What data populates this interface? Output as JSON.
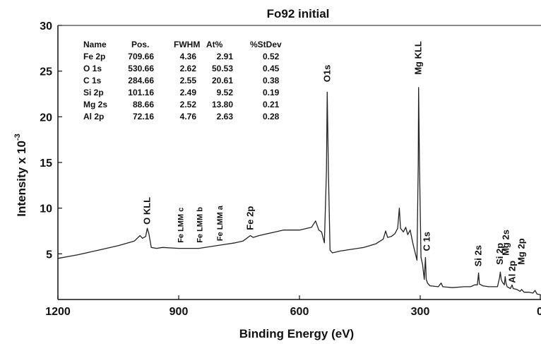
{
  "chart_data": {
    "type": "line",
    "title": "Fo92 initial",
    "xlabel": "Binding Energy (eV)",
    "ylabel": "Intensity x 10",
    "ylabel_exponent": "-3",
    "x_reversed": true,
    "xlim": [
      1200,
      0
    ],
    "ylim": [
      0,
      30
    ],
    "x_ticks": [
      {
        "value": 1200,
        "label": "1200"
      },
      {
        "value": 900,
        "label": "900"
      },
      {
        "value": 600,
        "label": "600"
      },
      {
        "value": 300,
        "label": "300"
      },
      {
        "value": 0,
        "label": "0"
      }
    ],
    "y_ticks": [
      {
        "value": 5,
        "label": "5"
      },
      {
        "value": 10,
        "label": "10"
      },
      {
        "value": 15,
        "label": "15"
      },
      {
        "value": 20,
        "label": "20"
      },
      {
        "value": 25,
        "label": "25"
      },
      {
        "value": 30,
        "label": "30"
      }
    ],
    "series": [
      {
        "color": "#222222",
        "points": [
          [
            1200,
            4.5
          ],
          [
            1150,
            4.9
          ],
          [
            1100,
            5.4
          ],
          [
            1050,
            5.9
          ],
          [
            1010,
            6.4
          ],
          [
            996,
            7.0
          ],
          [
            990,
            6.7
          ],
          [
            982,
            6.9
          ],
          [
            978,
            7.8
          ],
          [
            974,
            7.2
          ],
          [
            968,
            5.7
          ],
          [
            955,
            5.6
          ],
          [
            940,
            5.7
          ],
          [
            900,
            5.6
          ],
          [
            870,
            5.6
          ],
          [
            850,
            5.6
          ],
          [
            820,
            5.8
          ],
          [
            790,
            6.0
          ],
          [
            760,
            6.2
          ],
          [
            740,
            6.4
          ],
          [
            722,
            7.0
          ],
          [
            715,
            6.8
          ],
          [
            700,
            7.0
          ],
          [
            670,
            7.3
          ],
          [
            640,
            7.6
          ],
          [
            600,
            7.6
          ],
          [
            570,
            7.9
          ],
          [
            560,
            8.6
          ],
          [
            552,
            7.6
          ],
          [
            545,
            7.4
          ],
          [
            538,
            6.2
          ],
          [
            533,
            14.0
          ],
          [
            531,
            22.7
          ],
          [
            528,
            14.0
          ],
          [
            524,
            5.4
          ],
          [
            518,
            5.1
          ],
          [
            500,
            5.3
          ],
          [
            470,
            5.5
          ],
          [
            440,
            5.7
          ],
          [
            410,
            6.1
          ],
          [
            392,
            6.6
          ],
          [
            386,
            7.5
          ],
          [
            381,
            6.8
          ],
          [
            372,
            6.9
          ],
          [
            363,
            7.2
          ],
          [
            356,
            7.8
          ],
          [
            352,
            10.0
          ],
          [
            349,
            7.8
          ],
          [
            342,
            7.4
          ],
          [
            336,
            7.9
          ],
          [
            331,
            7.1
          ],
          [
            325,
            7.6
          ],
          [
            318,
            6.1
          ],
          [
            312,
            5.0
          ],
          [
            308,
            4.3
          ],
          [
            305,
            15.0
          ],
          [
            304,
            23.2
          ],
          [
            302,
            15.0
          ],
          [
            298,
            4.6
          ],
          [
            294,
            3.8
          ],
          [
            290,
            2.2
          ],
          [
            287,
            4.6
          ],
          [
            285,
            2.2
          ],
          [
            282,
            1.8
          ],
          [
            276,
            1.5
          ],
          [
            255,
            1.4
          ],
          [
            248,
            1.8
          ],
          [
            244,
            1.4
          ],
          [
            220,
            1.3
          ],
          [
            190,
            1.4
          ],
          [
            175,
            1.4
          ],
          [
            165,
            1.6
          ],
          [
            158,
            1.6
          ],
          [
            155,
            2.9
          ],
          [
            153,
            1.7
          ],
          [
            145,
            1.5
          ],
          [
            130,
            1.4
          ],
          [
            118,
            1.4
          ],
          [
            108,
            1.4
          ],
          [
            103,
            2.4
          ],
          [
            101,
            3.0
          ],
          [
            99,
            2.2
          ],
          [
            96,
            1.9
          ],
          [
            91,
            1.6
          ],
          [
            89,
            2.5
          ],
          [
            87,
            1.8
          ],
          [
            84,
            1.4
          ],
          [
            76,
            1.2
          ],
          [
            72,
            1.6
          ],
          [
            69,
            1.2
          ],
          [
            60,
            1.1
          ],
          [
            52,
            0.9
          ],
          [
            48,
            1.1
          ],
          [
            42,
            0.8
          ],
          [
            30,
            0.8
          ],
          [
            20,
            0.7
          ],
          [
            15,
            1.0
          ],
          [
            10,
            0.6
          ],
          [
            0,
            0.5
          ]
        ]
      }
    ],
    "peak_labels": [
      {
        "text": "O KLL",
        "x": 978,
        "y": 8.2,
        "size": "normal"
      },
      {
        "text": "Fe LMM c",
        "x": 896,
        "y": 6.2,
        "size": "small"
      },
      {
        "text": "Fe LMM b",
        "x": 848,
        "y": 6.2,
        "size": "small"
      },
      {
        "text": "Fe LMM a",
        "x": 798,
        "y": 6.4,
        "size": "small"
      },
      {
        "text": "Fe 2p",
        "x": 722,
        "y": 7.6,
        "size": "normal"
      },
      {
        "text": "O1s",
        "x": 531,
        "y": 23.8,
        "size": "normal"
      },
      {
        "text": "Mg KLL",
        "x": 304,
        "y": 24.6,
        "size": "normal"
      },
      {
        "text": "C 1s",
        "x": 283,
        "y": 5.3,
        "size": "normal"
      },
      {
        "text": "Si 2s",
        "x": 155,
        "y": 3.6,
        "size": "normal"
      },
      {
        "text": "Si 2p",
        "x": 102,
        "y": 3.8,
        "size": "normal"
      },
      {
        "text": "Mg 2s",
        "x": 87,
        "y": 4.8,
        "size": "normal"
      },
      {
        "text": "Al 2p",
        "x": 71,
        "y": 1.8,
        "size": "normal"
      },
      {
        "text": "Mg 2p",
        "x": 48,
        "y": 3.8,
        "size": "normal"
      }
    ],
    "table": {
      "headers": [
        "Name",
        "Pos.",
        "FWHM",
        "At%",
        "%StDev"
      ],
      "rows": [
        [
          "Fe 2p",
          "709.66",
          "4.36",
          "2.91",
          "0.52"
        ],
        [
          "O 1s",
          "530.66",
          "2.62",
          "50.53",
          "0.45"
        ],
        [
          "C 1s",
          "284.66",
          "2.55",
          "20.61",
          "0.38"
        ],
        [
          "Si 2p",
          "101.16",
          "2.49",
          "9.52",
          "0.19"
        ],
        [
          "Mg 2s",
          "88.66",
          "2.52",
          "13.80",
          "0.21"
        ],
        [
          "Al 2p",
          "72.16",
          "4.76",
          "2.63",
          "0.28"
        ]
      ]
    }
  }
}
